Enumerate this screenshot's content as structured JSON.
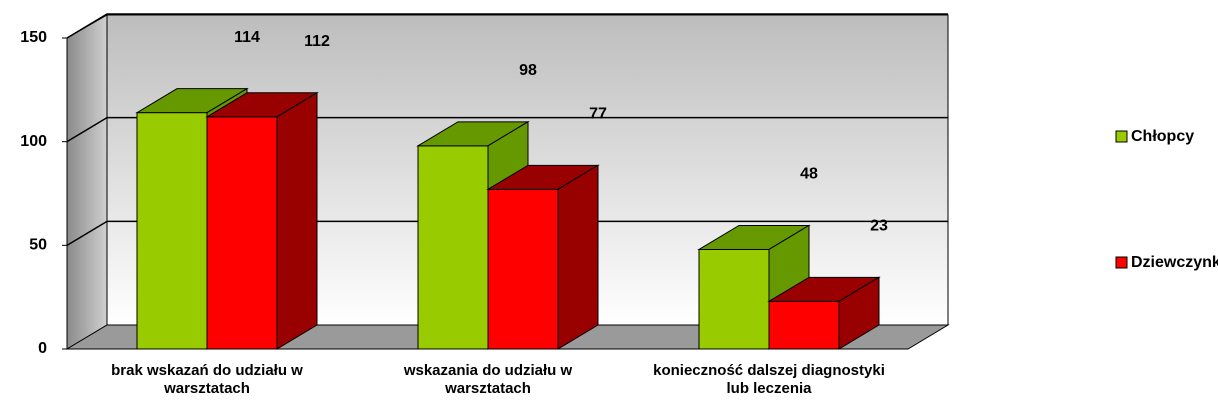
{
  "chart_data": {
    "type": "bar3d",
    "categories": [
      "brak wskazań do udziału w warsztatach",
      "wskazania do udziału w warsztatach",
      "konieczność dalszej diagnostyki lub leczenia"
    ],
    "series": [
      {
        "name": "Chłopcy",
        "color": "#99cc00",
        "side": "#669900",
        "values": [
          114,
          98,
          48
        ]
      },
      {
        "name": "Dziewczynki",
        "color": "#ff0000",
        "side": "#990000",
        "values": [
          112,
          77,
          23
        ]
      }
    ],
    "ylim": [
      0,
      150
    ],
    "yticks": [
      0,
      50,
      100,
      150
    ],
    "grid": true,
    "legend": "right"
  }
}
